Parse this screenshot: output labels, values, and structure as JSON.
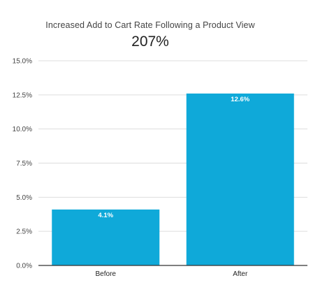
{
  "chart_data": {
    "type": "bar",
    "title": "Increased Add to Cart Rate Following a Product View",
    "subtitle": "207%",
    "categories": [
      "Before",
      "After"
    ],
    "values": [
      4.1,
      12.6
    ],
    "data_labels": [
      "4.1%",
      "12.6%"
    ],
    "ylim": [
      0,
      15
    ],
    "yticks": [
      0,
      2.5,
      5,
      7.5,
      10,
      12.5,
      15
    ],
    "ytick_labels": [
      "0.0%",
      "2.5%",
      "5.0%",
      "7.5%",
      "10.0%",
      "12.5%",
      "15.0%"
    ],
    "xlabel": "",
    "ylabel": "",
    "grid": true,
    "legend": "none",
    "colors": {
      "bar": "#0fa9d9",
      "grid": "#dddddd",
      "axis": "#333333"
    }
  }
}
